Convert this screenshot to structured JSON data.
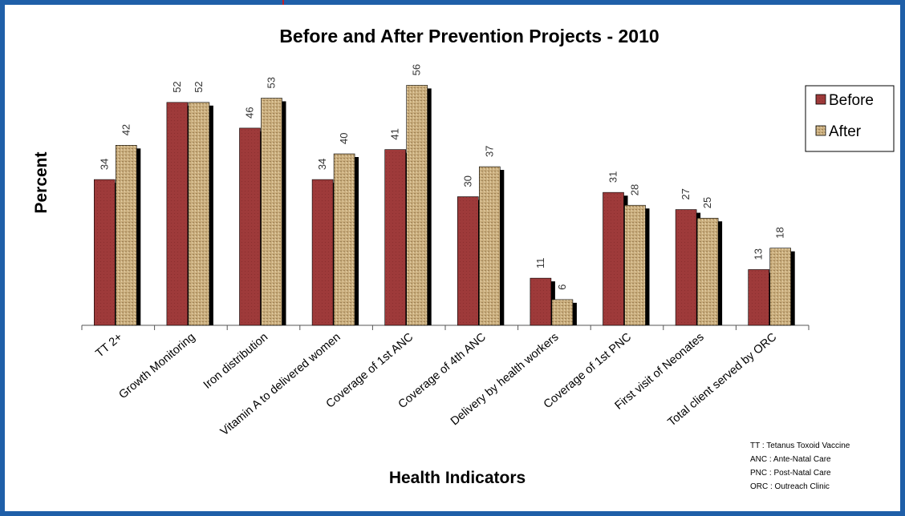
{
  "colors": {
    "border": "#1f5fa8",
    "before": "#9e3a3a",
    "after": "#c9ad7d",
    "shadow": "#000000",
    "axis": "#555555"
  },
  "chart_data": {
    "type": "bar",
    "title": "Before and After Prevention Projects - 2010",
    "xlabel": "Health Indicators",
    "ylabel": "Percent",
    "categories": [
      "TT 2+",
      "Growth Monitoring",
      "Iron distribution",
      "Vitamin A  to delivered women",
      "Coverage of 1st ANC",
      "Coverage of 4th ANC",
      "Delivery by health workers",
      "Coverage of 1st PNC",
      "First visit of Neonates",
      "Total client served by ORC"
    ],
    "series": [
      {
        "name": "Before",
        "values": [
          34,
          52,
          46,
          34,
          41,
          30,
          11,
          31,
          27,
          13
        ]
      },
      {
        "name": "After",
        "values": [
          42,
          52,
          53,
          40,
          56,
          37,
          6,
          28,
          25,
          18
        ]
      }
    ],
    "ylim": [
      0,
      60
    ],
    "grid": false,
    "legend": "top-right",
    "data_labels": true
  },
  "notes": [
    "TT : Tetanus Toxoid Vaccine",
    "ANC : Ante-Natal Care",
    "PNC : Post-Natal Care",
    "ORC : Outreach Clinic"
  ]
}
